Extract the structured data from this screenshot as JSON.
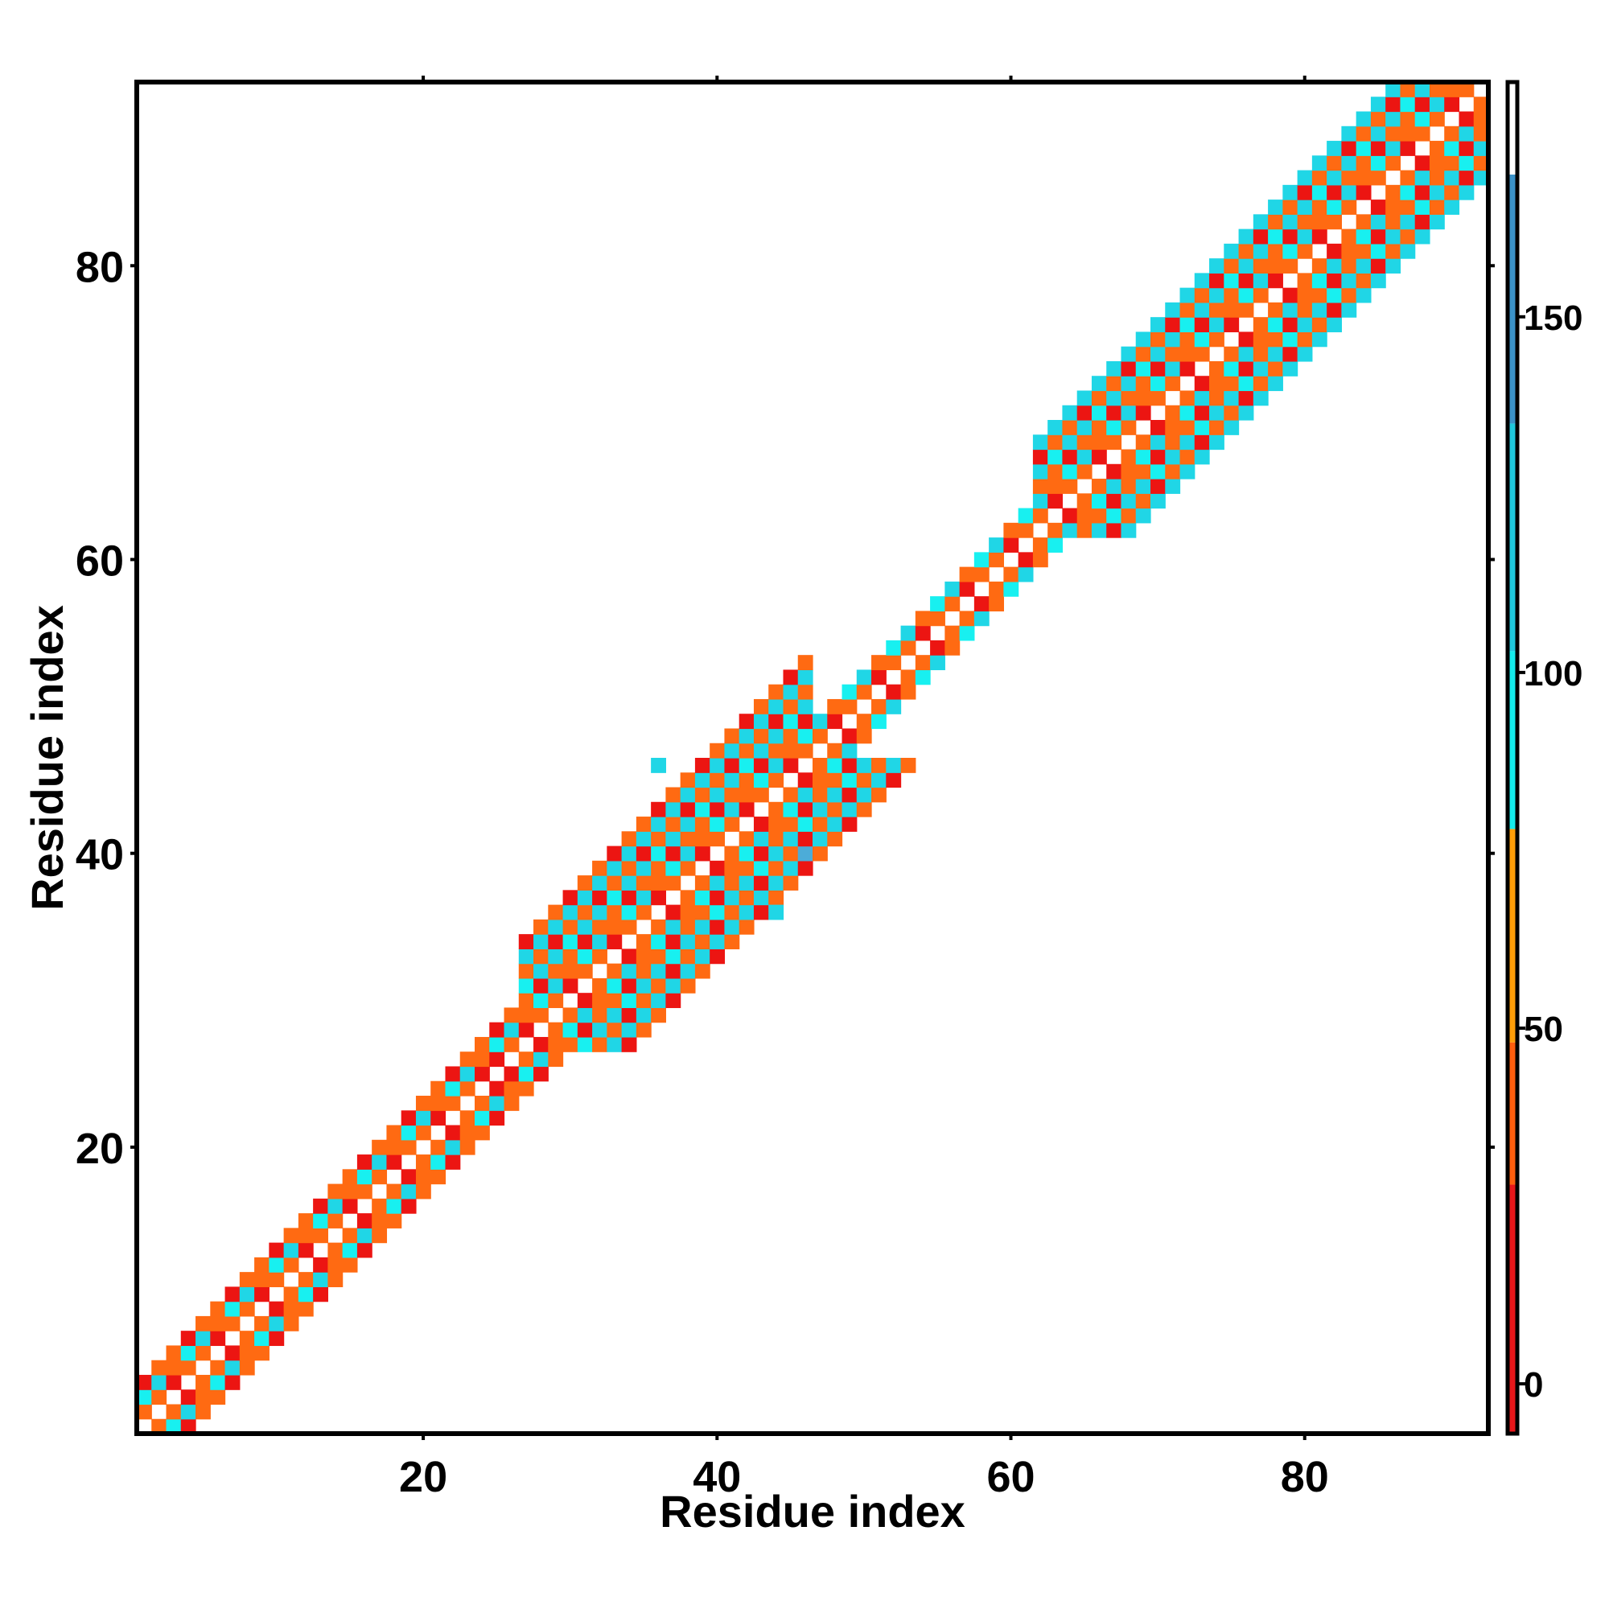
{
  "chart_data": {
    "type": "heatmap",
    "title": "",
    "xlabel": "Residue index",
    "ylabel": "Residue index",
    "n_residues": 92,
    "xlim": [
      0.5,
      92.5
    ],
    "ylim": [
      0.5,
      92.5
    ],
    "x_ticks": [
      20,
      40,
      60,
      80
    ],
    "y_ticks": [
      20,
      40,
      60,
      80
    ],
    "colorbar": {
      "range": [
        -7,
        183
      ],
      "ticks": [
        0,
        50,
        100,
        150
      ],
      "colors": [
        {
          "from": -7,
          "to": 28,
          "color": "#e8171a"
        },
        {
          "from": 28,
          "to": 48,
          "color": "#ff5e0d"
        },
        {
          "from": 48,
          "to": 78,
          "color": "#ff9e08"
        },
        {
          "from": 78,
          "to": 103,
          "color": "#14ecec"
        },
        {
          "from": 103,
          "to": 135,
          "color": "#1fc8dc"
        },
        {
          "from": 135,
          "to": 170,
          "color": "#3b92c8"
        },
        {
          "from": 170,
          "to": 183,
          "color": "#ffffff"
        }
      ]
    },
    "value_palette": {
      "0": "#ec1512",
      "1": "#ff6a12",
      "2": "#ff9c0a",
      "3": "#18f0f0",
      "4": "#20d6e6",
      "5": "#4cacd8"
    },
    "band_width": [
      {
        "from": 1,
        "to": 14,
        "width": 3
      },
      {
        "from": 15,
        "to": 26,
        "width": 3
      },
      {
        "from": 27,
        "to": 46,
        "width": 7
      },
      {
        "from": 47,
        "to": 61,
        "width": 2
      },
      {
        "from": 62,
        "to": 92,
        "width": 6
      }
    ],
    "band_pattern": {
      "1": [
        1,
        0,
        1
      ],
      "2": [
        3,
        4,
        1
      ],
      "3": [
        1,
        0,
        1
      ],
      "4": [
        4,
        3,
        4
      ],
      "5": [
        1,
        0,
        1
      ],
      "6": [
        4,
        4,
        4
      ],
      "7": [
        1,
        0,
        1
      ]
    },
    "outliers": [
      {
        "i": 36,
        "j": 46,
        "v": 4
      },
      {
        "i": 44,
        "j": 36,
        "v": 4
      },
      {
        "i": 46,
        "j": 40,
        "v": 5
      },
      {
        "i": 25,
        "j": 26,
        "v": 0
      },
      {
        "i": 26,
        "j": 25,
        "v": 0
      }
    ],
    "grid": false,
    "legend": "none"
  }
}
